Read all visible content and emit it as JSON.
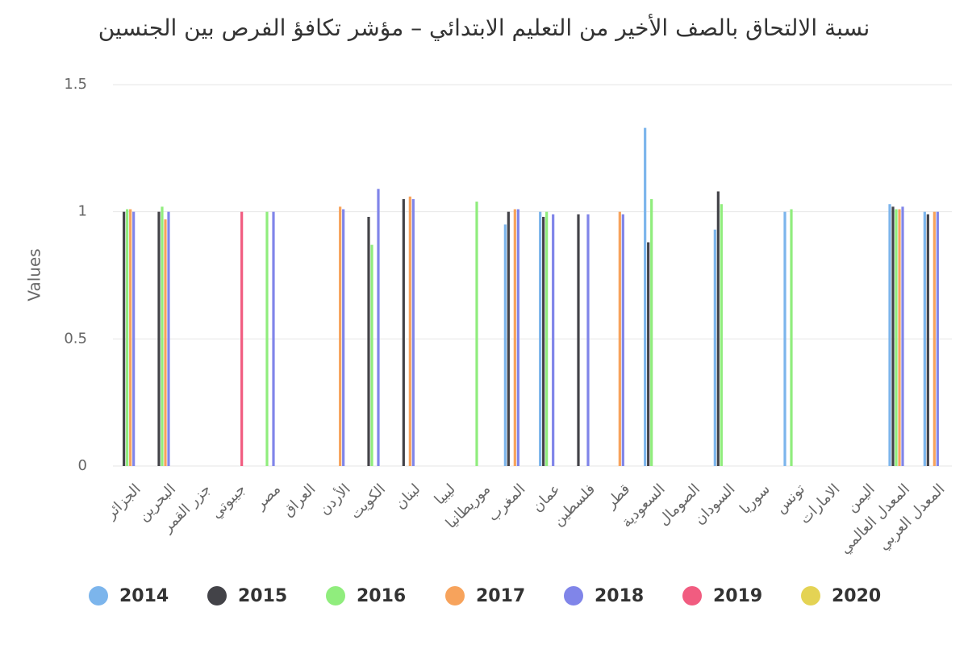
{
  "chart_data": {
    "type": "bar",
    "title": "نسبة الالتحاق بالصف الأخير من التعليم الابتدائي – مؤشر تكافؤ الفرص بين الجنسين",
    "y_label": "Values",
    "categories": [
      "الجزائر",
      "البحرين",
      "جزر القمر",
      "جيبوتي",
      "مصر",
      "العراق",
      "الأردن",
      "الكويت",
      "لبنان",
      "ليبيا",
      "موريطانيا",
      "المغرب",
      "عمان",
      "فلسطين",
      "قطر",
      "السعودية",
      "الصومال",
      "السودان",
      "سوريا",
      "تونس",
      "الامارات",
      "اليمن",
      "المعدل العالمي",
      "المعدل العربي"
    ],
    "series": [
      {
        "name": "2014",
        "color": "#7cb5ec",
        "values": [
          null,
          null,
          null,
          null,
          null,
          null,
          null,
          null,
          null,
          null,
          null,
          0.95,
          1.0,
          null,
          null,
          1.33,
          null,
          0.93,
          null,
          1.0,
          null,
          null,
          1.03,
          1.0
        ]
      },
      {
        "name": "2015",
        "color": "#434348",
        "values": [
          1.0,
          1.0,
          null,
          null,
          null,
          null,
          null,
          0.98,
          1.05,
          null,
          null,
          1.0,
          0.98,
          0.99,
          null,
          0.88,
          null,
          1.08,
          null,
          null,
          null,
          null,
          1.02,
          0.99
        ]
      },
      {
        "name": "2016",
        "color": "#90ed7d",
        "values": [
          1.01,
          1.02,
          null,
          null,
          1.0,
          null,
          null,
          0.87,
          null,
          null,
          1.04,
          null,
          1.0,
          null,
          null,
          1.05,
          null,
          1.03,
          null,
          1.01,
          null,
          null,
          1.01,
          null
        ]
      },
      {
        "name": "2017",
        "color": "#f7a35c",
        "values": [
          1.01,
          0.97,
          null,
          null,
          null,
          null,
          1.02,
          null,
          1.06,
          null,
          null,
          1.01,
          null,
          null,
          1.0,
          null,
          null,
          null,
          null,
          null,
          null,
          null,
          1.01,
          1.0
        ]
      },
      {
        "name": "2018",
        "color": "#8085e9",
        "values": [
          1.0,
          1.0,
          null,
          null,
          1.0,
          null,
          1.01,
          1.09,
          1.05,
          null,
          null,
          1.01,
          0.99,
          0.99,
          0.99,
          null,
          null,
          null,
          null,
          null,
          null,
          null,
          1.02,
          1.0
        ]
      },
      {
        "name": "2019",
        "color": "#f15c80",
        "values": [
          null,
          null,
          null,
          1.0,
          null,
          null,
          null,
          null,
          null,
          null,
          null,
          null,
          null,
          null,
          null,
          null,
          null,
          null,
          null,
          null,
          null,
          null,
          null,
          null
        ]
      },
      {
        "name": "2020",
        "color": "#e4d354",
        "values": [
          null,
          null,
          null,
          null,
          null,
          null,
          null,
          null,
          null,
          null,
          null,
          null,
          null,
          null,
          null,
          null,
          null,
          null,
          null,
          null,
          null,
          null,
          null,
          null
        ]
      }
    ],
    "ylim": [
      0,
      1.5
    ],
    "yticks": [
      0,
      0.5,
      1,
      1.5
    ],
    "grid": true
  }
}
